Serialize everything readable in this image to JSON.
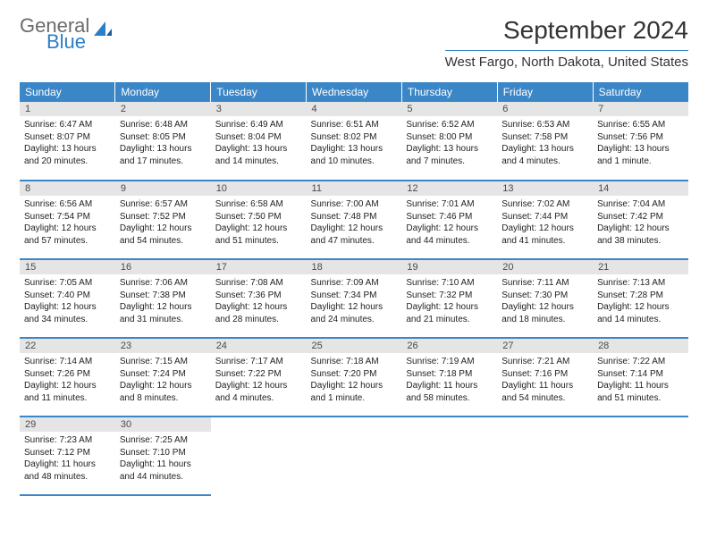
{
  "logo": {
    "line1": "General",
    "line2": "Blue"
  },
  "title": "September 2024",
  "location": "West Fargo, North Dakota, United States",
  "weekdays": [
    "Sunday",
    "Monday",
    "Tuesday",
    "Wednesday",
    "Thursday",
    "Friday",
    "Saturday"
  ],
  "style": {
    "header_bg": "#3b86c6",
    "header_fg": "#ffffff",
    "daynum_bg": "#e5e5e5",
    "daynum_fg": "#4a4a4a",
    "text_color": "#222222",
    "rule_color": "#3b86c6",
    "font_size_title": 28,
    "font_size_location": 15,
    "font_size_weekday": 12,
    "font_size_daynum": 11,
    "font_size_body": 10
  },
  "days": [
    {
      "n": "1",
      "sunrise": "6:47 AM",
      "sunset": "8:07 PM",
      "daylight": "13 hours and 20 minutes."
    },
    {
      "n": "2",
      "sunrise": "6:48 AM",
      "sunset": "8:05 PM",
      "daylight": "13 hours and 17 minutes."
    },
    {
      "n": "3",
      "sunrise": "6:49 AM",
      "sunset": "8:04 PM",
      "daylight": "13 hours and 14 minutes."
    },
    {
      "n": "4",
      "sunrise": "6:51 AM",
      "sunset": "8:02 PM",
      "daylight": "13 hours and 10 minutes."
    },
    {
      "n": "5",
      "sunrise": "6:52 AM",
      "sunset": "8:00 PM",
      "daylight": "13 hours and 7 minutes."
    },
    {
      "n": "6",
      "sunrise": "6:53 AM",
      "sunset": "7:58 PM",
      "daylight": "13 hours and 4 minutes."
    },
    {
      "n": "7",
      "sunrise": "6:55 AM",
      "sunset": "7:56 PM",
      "daylight": "13 hours and 1 minute."
    },
    {
      "n": "8",
      "sunrise": "6:56 AM",
      "sunset": "7:54 PM",
      "daylight": "12 hours and 57 minutes."
    },
    {
      "n": "9",
      "sunrise": "6:57 AM",
      "sunset": "7:52 PM",
      "daylight": "12 hours and 54 minutes."
    },
    {
      "n": "10",
      "sunrise": "6:58 AM",
      "sunset": "7:50 PM",
      "daylight": "12 hours and 51 minutes."
    },
    {
      "n": "11",
      "sunrise": "7:00 AM",
      "sunset": "7:48 PM",
      "daylight": "12 hours and 47 minutes."
    },
    {
      "n": "12",
      "sunrise": "7:01 AM",
      "sunset": "7:46 PM",
      "daylight": "12 hours and 44 minutes."
    },
    {
      "n": "13",
      "sunrise": "7:02 AM",
      "sunset": "7:44 PM",
      "daylight": "12 hours and 41 minutes."
    },
    {
      "n": "14",
      "sunrise": "7:04 AM",
      "sunset": "7:42 PM",
      "daylight": "12 hours and 38 minutes."
    },
    {
      "n": "15",
      "sunrise": "7:05 AM",
      "sunset": "7:40 PM",
      "daylight": "12 hours and 34 minutes."
    },
    {
      "n": "16",
      "sunrise": "7:06 AM",
      "sunset": "7:38 PM",
      "daylight": "12 hours and 31 minutes."
    },
    {
      "n": "17",
      "sunrise": "7:08 AM",
      "sunset": "7:36 PM",
      "daylight": "12 hours and 28 minutes."
    },
    {
      "n": "18",
      "sunrise": "7:09 AM",
      "sunset": "7:34 PM",
      "daylight": "12 hours and 24 minutes."
    },
    {
      "n": "19",
      "sunrise": "7:10 AM",
      "sunset": "7:32 PM",
      "daylight": "12 hours and 21 minutes."
    },
    {
      "n": "20",
      "sunrise": "7:11 AM",
      "sunset": "7:30 PM",
      "daylight": "12 hours and 18 minutes."
    },
    {
      "n": "21",
      "sunrise": "7:13 AM",
      "sunset": "7:28 PM",
      "daylight": "12 hours and 14 minutes."
    },
    {
      "n": "22",
      "sunrise": "7:14 AM",
      "sunset": "7:26 PM",
      "daylight": "12 hours and 11 minutes."
    },
    {
      "n": "23",
      "sunrise": "7:15 AM",
      "sunset": "7:24 PM",
      "daylight": "12 hours and 8 minutes."
    },
    {
      "n": "24",
      "sunrise": "7:17 AM",
      "sunset": "7:22 PM",
      "daylight": "12 hours and 4 minutes."
    },
    {
      "n": "25",
      "sunrise": "7:18 AM",
      "sunset": "7:20 PM",
      "daylight": "12 hours and 1 minute."
    },
    {
      "n": "26",
      "sunrise": "7:19 AM",
      "sunset": "7:18 PM",
      "daylight": "11 hours and 58 minutes."
    },
    {
      "n": "27",
      "sunrise": "7:21 AM",
      "sunset": "7:16 PM",
      "daylight": "11 hours and 54 minutes."
    },
    {
      "n": "28",
      "sunrise": "7:22 AM",
      "sunset": "7:14 PM",
      "daylight": "11 hours and 51 minutes."
    },
    {
      "n": "29",
      "sunrise": "7:23 AM",
      "sunset": "7:12 PM",
      "daylight": "11 hours and 48 minutes."
    },
    {
      "n": "30",
      "sunrise": "7:25 AM",
      "sunset": "7:10 PM",
      "daylight": "11 hours and 44 minutes."
    }
  ],
  "grid": {
    "start_col": 0,
    "rows": 5,
    "cols": 7
  }
}
